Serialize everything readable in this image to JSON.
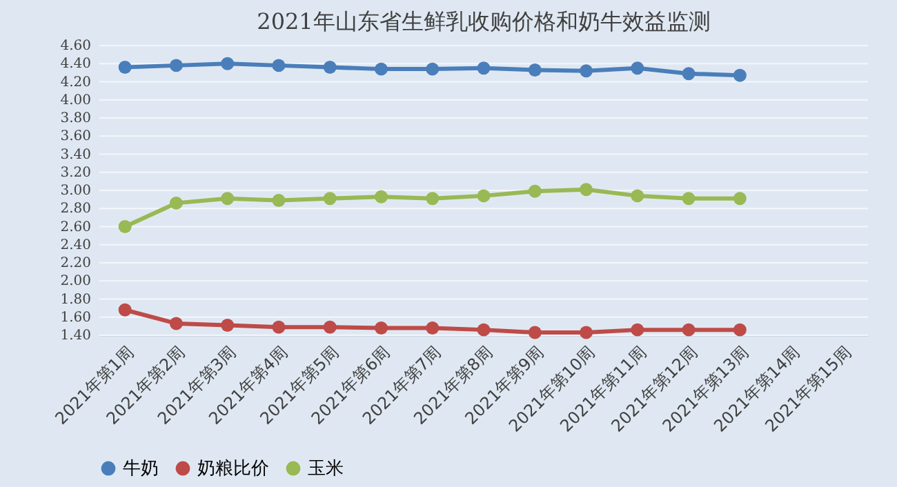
{
  "chart_data": {
    "type": "line",
    "title": "2021年山东省生鲜乳收购价格和奶牛效益监测",
    "categories": [
      "2021年第1周",
      "2021年第2周",
      "2021年第3周",
      "2021年第4周",
      "2021年第5周",
      "2021年第6周",
      "2021年第7周",
      "2021年第8周",
      "2021年第9周",
      "2021年第10周",
      "2021年第11周",
      "2021年第12周",
      "2021年第13周",
      "2021年第14周",
      "2021年第15周"
    ],
    "series": [
      {
        "name": "牛奶",
        "color": "#4a7ebb",
        "values": [
          4.36,
          4.38,
          4.4,
          4.38,
          4.36,
          4.34,
          4.34,
          4.35,
          4.33,
          4.32,
          4.35,
          4.29,
          4.27,
          null,
          null
        ]
      },
      {
        "name": "奶粮比价",
        "color": "#be4b48",
        "values": [
          1.68,
          1.53,
          1.51,
          1.49,
          1.49,
          1.48,
          1.48,
          1.46,
          1.43,
          1.43,
          1.46,
          1.46,
          1.46,
          null,
          null
        ]
      },
      {
        "name": "玉米",
        "color": "#98b954",
        "values": [
          2.6,
          2.86,
          2.91,
          2.89,
          2.91,
          2.93,
          2.91,
          2.94,
          2.99,
          3.01,
          2.94,
          2.91,
          2.91,
          null,
          null
        ]
      }
    ],
    "ylim": [
      1.4,
      4.6
    ],
    "yticks": [
      {
        "value": 1.4,
        "label": "1.40"
      },
      {
        "value": 1.6,
        "label": "1.60"
      },
      {
        "value": 1.8,
        "label": "1.80"
      },
      {
        "value": 2.0,
        "label": "2.00"
      },
      {
        "value": 2.2,
        "label": "2.20"
      },
      {
        "value": 2.4,
        "label": "2.40"
      },
      {
        "value": 2.6,
        "label": "2.60"
      },
      {
        "value": 2.8,
        "label": "2.80"
      },
      {
        "value": 3.0,
        "label": "3.00"
      },
      {
        "value": 3.2,
        "label": "3.20"
      },
      {
        "value": 3.4,
        "label": "3.40"
      },
      {
        "value": 3.6,
        "label": "3.60"
      },
      {
        "value": 3.8,
        "label": "3.80"
      },
      {
        "value": 4.0,
        "label": "4.00"
      },
      {
        "value": 4.2,
        "label": "4.20"
      },
      {
        "value": 4.4,
        "label": "4.40"
      },
      {
        "value": 4.6,
        "label": "4.60"
      }
    ],
    "grid": "y",
    "legend": "bottom",
    "marker": "circle",
    "line_style": "solid"
  }
}
